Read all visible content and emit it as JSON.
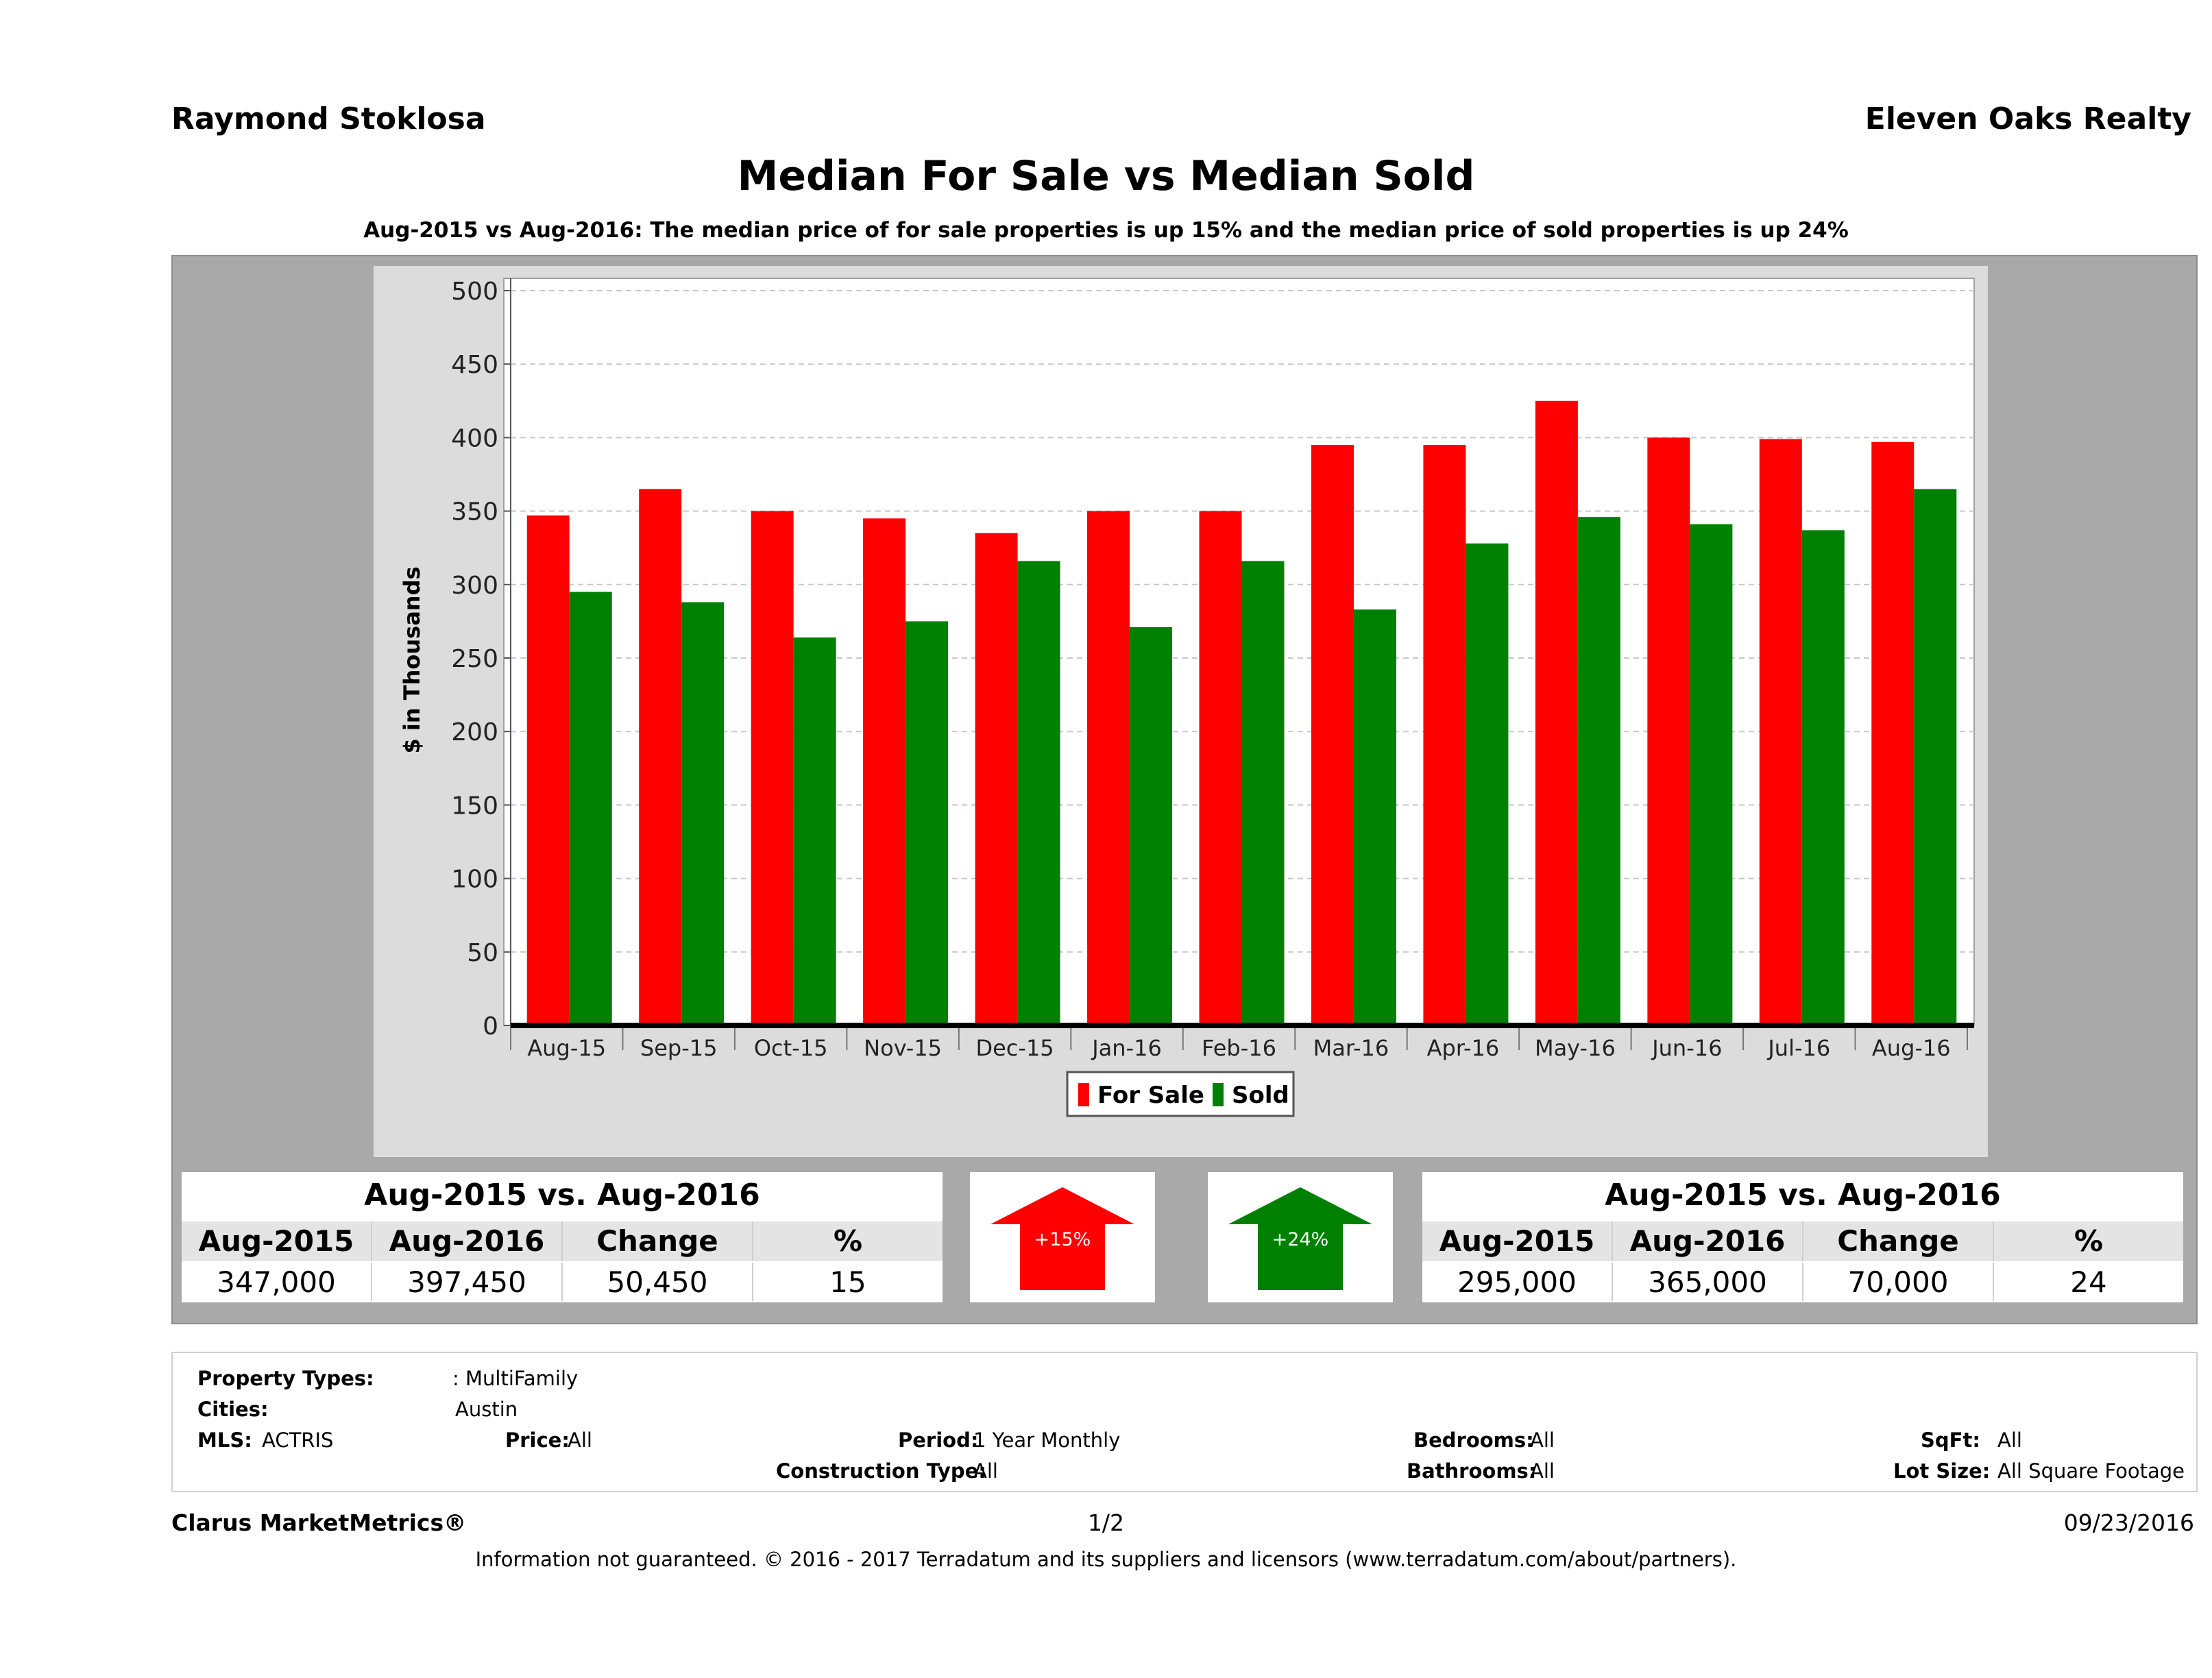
{
  "header": {
    "agent_name": "Raymond Stoklosa",
    "brokerage": "Eleven Oaks Realty"
  },
  "chart_data": {
    "type": "bar",
    "title": "Median For Sale vs Median Sold",
    "subtitle": "Aug-2015 vs Aug-2016: The median price of for sale properties is up 15% and the median price of sold properties is up 24%",
    "xlabel": "",
    "ylabel": "$ in Thousands",
    "ylim": [
      0,
      500
    ],
    "yticks": [
      0,
      50,
      100,
      150,
      200,
      250,
      300,
      350,
      400,
      450,
      500
    ],
    "grid": true,
    "legend_position": "bottom",
    "categories": [
      "Aug-15",
      "Sep-15",
      "Oct-15",
      "Nov-15",
      "Dec-15",
      "Jan-16",
      "Feb-16",
      "Mar-16",
      "Apr-16",
      "May-16",
      "Jun-16",
      "Jul-16",
      "Aug-16"
    ],
    "series": [
      {
        "name": "For Sale",
        "color": "#ff0000",
        "values": [
          347,
          365,
          350,
          345,
          335,
          350,
          350,
          395,
          395,
          425,
          400,
          399,
          397
        ]
      },
      {
        "name": "Sold",
        "color": "#008000",
        "values": [
          295,
          288,
          264,
          275,
          316,
          271,
          316,
          283,
          328,
          346,
          341,
          337,
          365
        ]
      }
    ]
  },
  "for_sale_table": {
    "title": "Aug-2015 vs. Aug-2016",
    "headers": [
      "Aug-2015",
      "Aug-2016",
      "Change",
      "%"
    ],
    "values": [
      "347,000",
      "397,450",
      "50,450",
      "15"
    ]
  },
  "sold_table": {
    "title": "Aug-2015 vs. Aug-2016",
    "headers": [
      "Aug-2015",
      "Aug-2016",
      "Change",
      "%"
    ],
    "values": [
      "295,000",
      "365,000",
      "70,000",
      "24"
    ]
  },
  "arrows": {
    "for_sale": {
      "label": "+15%",
      "color": "#ff0000",
      "icon": "up-arrow-icon"
    },
    "sold": {
      "label": "+24%",
      "color": "#008000",
      "icon": "up-arrow-icon"
    }
  },
  "info": {
    "property_types_label": "Property Types:",
    "property_types_value": ": MultiFamily",
    "cities_label": "Cities:",
    "cities_value": "Austin",
    "mls_label": "MLS:",
    "mls_value": "ACTRIS",
    "price_label": "Price:",
    "price_value": "All",
    "period_label": "Period:",
    "period_value": "1 Year Monthly",
    "construction_label": "Construction Type:",
    "construction_value": "All",
    "bedrooms_label": "Bedrooms:",
    "bedrooms_value": "All",
    "bathrooms_label": "Bathrooms:",
    "bathrooms_value": "All",
    "sqft_label": "SqFt:",
    "sqft_value": "All",
    "lotsize_label": "Lot Size:",
    "lotsize_value": "All Square Footage"
  },
  "footer": {
    "product": "Clarus MarketMetrics®",
    "page": "1/2",
    "date": "09/23/2016",
    "disclaimer": "Information not guaranteed. © 2016 - 2017 Terradatum and its suppliers and licensors (www.terradatum.com/about/partners)."
  }
}
